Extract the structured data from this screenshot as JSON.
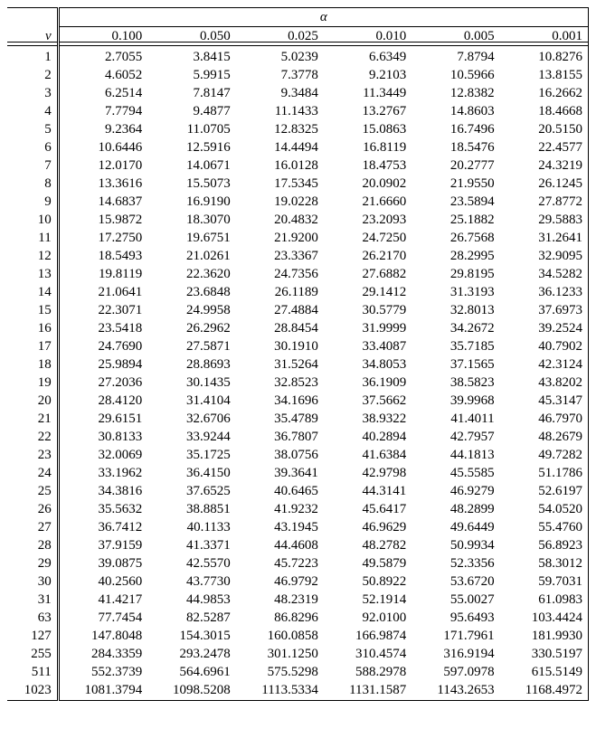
{
  "table": {
    "type": "table",
    "header_v": "v",
    "header_alpha": "α",
    "alpha_values": [
      "0.100",
      "0.050",
      "0.025",
      "0.010",
      "0.005",
      "0.001"
    ],
    "rows": [
      {
        "v": "1",
        "vals": [
          "2.7055",
          "3.8415",
          "5.0239",
          "6.6349",
          "7.8794",
          "10.8276"
        ]
      },
      {
        "v": "2",
        "vals": [
          "4.6052",
          "5.9915",
          "7.3778",
          "9.2103",
          "10.5966",
          "13.8155"
        ]
      },
      {
        "v": "3",
        "vals": [
          "6.2514",
          "7.8147",
          "9.3484",
          "11.3449",
          "12.8382",
          "16.2662"
        ]
      },
      {
        "v": "4",
        "vals": [
          "7.7794",
          "9.4877",
          "11.1433",
          "13.2767",
          "14.8603",
          "18.4668"
        ]
      },
      {
        "v": "5",
        "vals": [
          "9.2364",
          "11.0705",
          "12.8325",
          "15.0863",
          "16.7496",
          "20.5150"
        ]
      },
      {
        "v": "6",
        "vals": [
          "10.6446",
          "12.5916",
          "14.4494",
          "16.8119",
          "18.5476",
          "22.4577"
        ]
      },
      {
        "v": "7",
        "vals": [
          "12.0170",
          "14.0671",
          "16.0128",
          "18.4753",
          "20.2777",
          "24.3219"
        ]
      },
      {
        "v": "8",
        "vals": [
          "13.3616",
          "15.5073",
          "17.5345",
          "20.0902",
          "21.9550",
          "26.1245"
        ]
      },
      {
        "v": "9",
        "vals": [
          "14.6837",
          "16.9190",
          "19.0228",
          "21.6660",
          "23.5894",
          "27.8772"
        ]
      },
      {
        "v": "10",
        "vals": [
          "15.9872",
          "18.3070",
          "20.4832",
          "23.2093",
          "25.1882",
          "29.5883"
        ]
      },
      {
        "v": "11",
        "vals": [
          "17.2750",
          "19.6751",
          "21.9200",
          "24.7250",
          "26.7568",
          "31.2641"
        ]
      },
      {
        "v": "12",
        "vals": [
          "18.5493",
          "21.0261",
          "23.3367",
          "26.2170",
          "28.2995",
          "32.9095"
        ]
      },
      {
        "v": "13",
        "vals": [
          "19.8119",
          "22.3620",
          "24.7356",
          "27.6882",
          "29.8195",
          "34.5282"
        ]
      },
      {
        "v": "14",
        "vals": [
          "21.0641",
          "23.6848",
          "26.1189",
          "29.1412",
          "31.3193",
          "36.1233"
        ]
      },
      {
        "v": "15",
        "vals": [
          "22.3071",
          "24.9958",
          "27.4884",
          "30.5779",
          "32.8013",
          "37.6973"
        ]
      },
      {
        "v": "16",
        "vals": [
          "23.5418",
          "26.2962",
          "28.8454",
          "31.9999",
          "34.2672",
          "39.2524"
        ]
      },
      {
        "v": "17",
        "vals": [
          "24.7690",
          "27.5871",
          "30.1910",
          "33.4087",
          "35.7185",
          "40.7902"
        ]
      },
      {
        "v": "18",
        "vals": [
          "25.9894",
          "28.8693",
          "31.5264",
          "34.8053",
          "37.1565",
          "42.3124"
        ]
      },
      {
        "v": "19",
        "vals": [
          "27.2036",
          "30.1435",
          "32.8523",
          "36.1909",
          "38.5823",
          "43.8202"
        ]
      },
      {
        "v": "20",
        "vals": [
          "28.4120",
          "31.4104",
          "34.1696",
          "37.5662",
          "39.9968",
          "45.3147"
        ]
      },
      {
        "v": "21",
        "vals": [
          "29.6151",
          "32.6706",
          "35.4789",
          "38.9322",
          "41.4011",
          "46.7970"
        ]
      },
      {
        "v": "22",
        "vals": [
          "30.8133",
          "33.9244",
          "36.7807",
          "40.2894",
          "42.7957",
          "48.2679"
        ]
      },
      {
        "v": "23",
        "vals": [
          "32.0069",
          "35.1725",
          "38.0756",
          "41.6384",
          "44.1813",
          "49.7282"
        ]
      },
      {
        "v": "24",
        "vals": [
          "33.1962",
          "36.4150",
          "39.3641",
          "42.9798",
          "45.5585",
          "51.1786"
        ]
      },
      {
        "v": "25",
        "vals": [
          "34.3816",
          "37.6525",
          "40.6465",
          "44.3141",
          "46.9279",
          "52.6197"
        ]
      },
      {
        "v": "26",
        "vals": [
          "35.5632",
          "38.8851",
          "41.9232",
          "45.6417",
          "48.2899",
          "54.0520"
        ]
      },
      {
        "v": "27",
        "vals": [
          "36.7412",
          "40.1133",
          "43.1945",
          "46.9629",
          "49.6449",
          "55.4760"
        ]
      },
      {
        "v": "28",
        "vals": [
          "37.9159",
          "41.3371",
          "44.4608",
          "48.2782",
          "50.9934",
          "56.8923"
        ]
      },
      {
        "v": "29",
        "vals": [
          "39.0875",
          "42.5570",
          "45.7223",
          "49.5879",
          "52.3356",
          "58.3012"
        ]
      },
      {
        "v": "30",
        "vals": [
          "40.2560",
          "43.7730",
          "46.9792",
          "50.8922",
          "53.6720",
          "59.7031"
        ]
      },
      {
        "v": "31",
        "vals": [
          "41.4217",
          "44.9853",
          "48.2319",
          "52.1914",
          "55.0027",
          "61.0983"
        ]
      },
      {
        "v": "63",
        "vals": [
          "77.7454",
          "82.5287",
          "86.8296",
          "92.0100",
          "95.6493",
          "103.4424"
        ]
      },
      {
        "v": "127",
        "vals": [
          "147.8048",
          "154.3015",
          "160.0858",
          "166.9874",
          "171.7961",
          "181.9930"
        ]
      },
      {
        "v": "255",
        "vals": [
          "284.3359",
          "293.2478",
          "301.1250",
          "310.4574",
          "316.9194",
          "330.5197"
        ]
      },
      {
        "v": "511",
        "vals": [
          "552.3739",
          "564.6961",
          "575.5298",
          "588.2978",
          "597.0978",
          "615.5149"
        ]
      },
      {
        "v": "1023",
        "vals": [
          "1081.3794",
          "1098.5208",
          "1113.5334",
          "1131.1587",
          "1143.2653",
          "1168.4972"
        ]
      }
    ],
    "background_color": "#ffffff",
    "text_color": "#000000",
    "border_color": "#000000",
    "font_family": "Times New Roman",
    "font_size": 15,
    "col_v_width": 50,
    "col_a_width": 98
  }
}
